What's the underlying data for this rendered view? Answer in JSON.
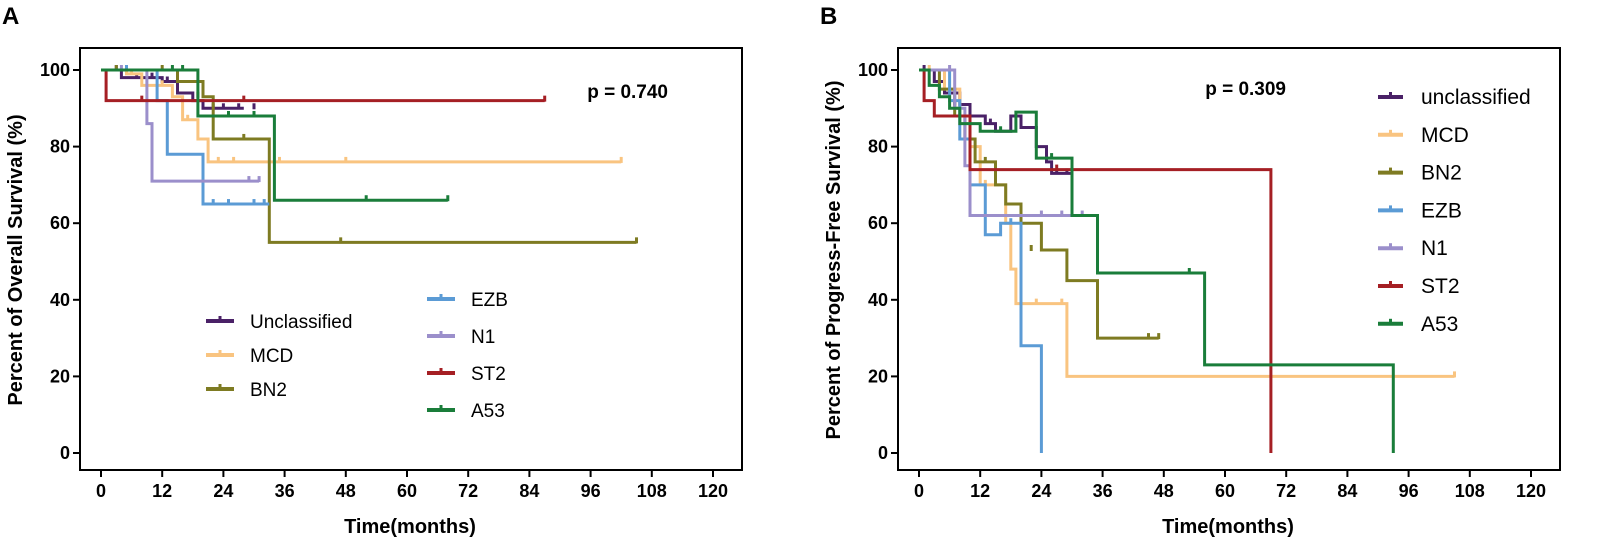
{
  "chart_data": [
    {
      "panel": "A",
      "type": "line",
      "step": true,
      "xlabel": "Time(months)",
      "ylabel": "Percent of Overall Survival (%)",
      "xlim": [
        0,
        120
      ],
      "ylim": [
        0,
        100
      ],
      "xticks": [
        0,
        12,
        24,
        36,
        48,
        60,
        72,
        84,
        96,
        108,
        120
      ],
      "yticks": [
        0,
        20,
        40,
        60,
        80,
        100
      ],
      "annotation": "p = 0.740",
      "legend_columns": [
        [
          "Unclassified",
          "MCD",
          "BN2"
        ],
        [
          "EZB",
          "N1",
          "ST2",
          "A53"
        ]
      ],
      "series": [
        {
          "name": "Unclassified",
          "color": "#4a2167",
          "x": [
            0,
            4,
            8,
            12,
            15,
            18,
            20,
            28
          ],
          "y": [
            100,
            98,
            98,
            97,
            94,
            92,
            90,
            90
          ],
          "censor": [
            [
              3,
              100
            ],
            [
              7,
              98
            ],
            [
              10,
              98
            ],
            [
              13,
              97
            ],
            [
              22,
              90
            ],
            [
              24,
              90
            ],
            [
              27,
              90
            ],
            [
              30,
              90
            ]
          ]
        },
        {
          "name": "MCD",
          "color": "#f9c480",
          "x": [
            0,
            5,
            8,
            14,
            16,
            19,
            21,
            102
          ],
          "y": [
            100,
            99,
            96,
            93,
            87,
            82,
            76,
            76
          ],
          "censor": [
            [
              6,
              99
            ],
            [
              12,
              96
            ],
            [
              17,
              87
            ],
            [
              23,
              76
            ],
            [
              26,
              76
            ],
            [
              35,
              76
            ],
            [
              48,
              76
            ],
            [
              102,
              76
            ]
          ]
        },
        {
          "name": "BN2",
          "color": "#7e7b22",
          "x": [
            0,
            10,
            15,
            20,
            22,
            33,
            105
          ],
          "y": [
            100,
            100,
            97,
            93,
            82,
            55,
            55
          ],
          "censor": [
            [
              3,
              100
            ],
            [
              12,
              100
            ],
            [
              19,
              93
            ],
            [
              28,
              82
            ],
            [
              47,
              55
            ],
            [
              105,
              55
            ]
          ]
        },
        {
          "name": "EZB",
          "color": "#5b9bd5",
          "x": [
            0,
            11,
            13,
            20,
            33
          ],
          "y": [
            100,
            92,
            78,
            65,
            65
          ],
          "censor": [
            [
              5,
              100
            ],
            [
              22,
              65
            ],
            [
              25,
              65
            ],
            [
              30,
              65
            ],
            [
              32,
              65
            ]
          ]
        },
        {
          "name": "N1",
          "color": "#9b8fcb",
          "x": [
            0,
            9,
            10,
            31
          ],
          "y": [
            100,
            86,
            71,
            71
          ],
          "censor": [
            [
              4,
              100
            ],
            [
              29,
              71
            ],
            [
              31,
              71
            ]
          ]
        },
        {
          "name": "ST2",
          "color": "#a51f24",
          "x": [
            0,
            1,
            87
          ],
          "y": [
            100,
            92,
            92
          ],
          "censor": [
            [
              8,
              92
            ],
            [
              28,
              92
            ],
            [
              87,
              92
            ]
          ]
        },
        {
          "name": "A53",
          "color": "#1a7d3a",
          "x": [
            0,
            19,
            34,
            68
          ],
          "y": [
            100,
            88,
            66,
            66
          ],
          "censor": [
            [
              14,
              100
            ],
            [
              16,
              100
            ],
            [
              25,
              88
            ],
            [
              30,
              88
            ],
            [
              52,
              66
            ],
            [
              68,
              66
            ]
          ]
        }
      ]
    },
    {
      "panel": "B",
      "type": "line",
      "step": true,
      "xlabel": "Time(months)",
      "ylabel": "Percent of Progress-Free Survival (%)",
      "xlim": [
        0,
        120
      ],
      "ylim": [
        0,
        100
      ],
      "xticks": [
        0,
        12,
        24,
        36,
        48,
        60,
        72,
        84,
        96,
        108,
        120
      ],
      "yticks": [
        0,
        20,
        40,
        60,
        80,
        100
      ],
      "annotation": "p = 0.309",
      "legend_columns": [
        [
          "unclassified",
          "MCD",
          "BN2",
          "EZB",
          "N1",
          "ST2",
          "A53"
        ]
      ],
      "series": [
        {
          "name": "unclassified",
          "color": "#4a2167",
          "x": [
            0,
            3,
            5,
            8,
            10,
            13,
            15,
            18,
            20,
            23,
            25,
            26,
            30
          ],
          "y": [
            100,
            97,
            94,
            91,
            88,
            86,
            84,
            88,
            85,
            80,
            76,
            73,
            73
          ],
          "censor": [
            [
              1,
              100
            ],
            [
              7,
              91
            ],
            [
              14,
              86
            ],
            [
              27,
              73
            ],
            [
              29,
              73
            ]
          ]
        },
        {
          "name": "MCD",
          "color": "#f9c480",
          "x": [
            0,
            5,
            8,
            10,
            12,
            17,
            18,
            19,
            29,
            105
          ],
          "y": [
            100,
            95,
            88,
            80,
            70,
            60,
            48,
            39,
            20,
            20
          ],
          "censor": [
            [
              2,
              100
            ],
            [
              13,
              70
            ],
            [
              23,
              39
            ],
            [
              28,
              39
            ],
            [
              105,
              20
            ]
          ]
        },
        {
          "name": "BN2",
          "color": "#7e7b22",
          "x": [
            0,
            4,
            7,
            9,
            11,
            15,
            17,
            20,
            24,
            29,
            35,
            47
          ],
          "y": [
            100,
            95,
            88,
            82,
            76,
            70,
            65,
            60,
            53,
            45,
            30,
            30
          ],
          "censor": [
            [
              13,
              76
            ],
            [
              22,
              53
            ],
            [
              45,
              30
            ],
            [
              47,
              30
            ]
          ]
        },
        {
          "name": "EZB",
          "color": "#5b9bd5",
          "x": [
            0,
            6,
            8,
            10,
            13,
            16,
            20,
            24
          ],
          "y": [
            100,
            92,
            82,
            70,
            57,
            60,
            28,
            0
          ],
          "censor": [
            [
              18,
              60
            ]
          ]
        },
        {
          "name": "N1",
          "color": "#9b8fcb",
          "x": [
            0,
            7,
            9,
            10,
            32
          ],
          "y": [
            100,
            90,
            75,
            62,
            62
          ],
          "censor": [
            [
              6,
              100
            ],
            [
              24,
              62
            ],
            [
              28,
              62
            ],
            [
              32,
              62
            ]
          ]
        },
        {
          "name": "ST2",
          "color": "#a51f24",
          "x": [
            0,
            1,
            3,
            10,
            69
          ],
          "y": [
            100,
            92,
            88,
            74,
            0
          ],
          "censor": [
            [
              27,
              74
            ],
            [
              30,
              74
            ]
          ]
        },
        {
          "name": "A53",
          "color": "#1a7d3a",
          "x": [
            0,
            2,
            4,
            6,
            8,
            12,
            19,
            23,
            30,
            35,
            56,
            93
          ],
          "y": [
            100,
            96,
            93,
            90,
            86,
            84,
            89,
            77,
            62,
            47,
            23,
            0
          ],
          "censor": [
            [
              16,
              84
            ],
            [
              26,
              77
            ],
            [
              53,
              47
            ]
          ]
        }
      ]
    }
  ]
}
